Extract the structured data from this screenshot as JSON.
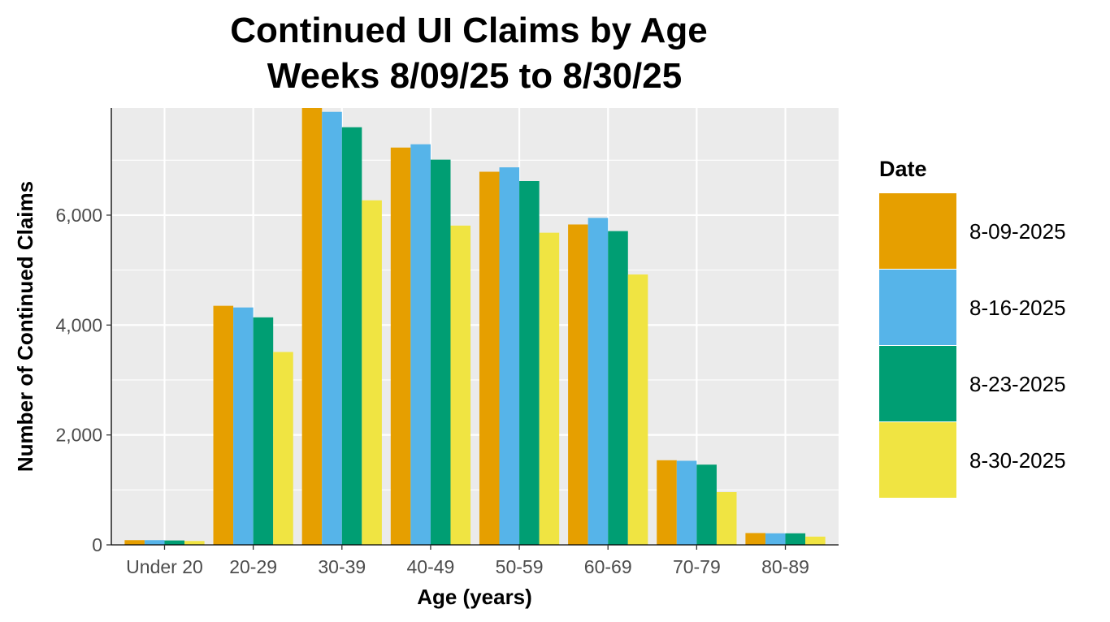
{
  "chart_data": {
    "type": "bar",
    "title": "Continued UI Claims by Age",
    "subtitle": "Weeks 8/09/25 to 8/30/25",
    "xlabel": "Age (years)",
    "ylabel": "Number of Continued Claims",
    "categories": [
      "Under 20",
      "20-29",
      "30-39",
      "40-49",
      "50-59",
      "60-69",
      "70-79",
      "80-89"
    ],
    "ylim": [
      0,
      7950
    ],
    "yticks": [
      0,
      2000,
      4000,
      6000
    ],
    "ytick_labels": [
      "0",
      "2,000",
      "4,000",
      "6,000"
    ],
    "grid": true,
    "legend": {
      "title": "Date",
      "position": "right"
    },
    "series": [
      {
        "name": "8-09-2025",
        "color": "#E69F00",
        "values": [
          85,
          4350,
          7950,
          7230,
          6790,
          5830,
          1540,
          215
        ]
      },
      {
        "name": "8-16-2025",
        "color": "#56B4E9",
        "values": [
          85,
          4320,
          7880,
          7290,
          6870,
          5950,
          1530,
          210
        ]
      },
      {
        "name": "8-23-2025",
        "color": "#009E73",
        "values": [
          80,
          4140,
          7600,
          7010,
          6620,
          5710,
          1460,
          210
        ]
      },
      {
        "name": "8-30-2025",
        "color": "#F0E442",
        "values": [
          70,
          3510,
          6270,
          5810,
          5680,
          4920,
          960,
          150
        ]
      }
    ]
  }
}
